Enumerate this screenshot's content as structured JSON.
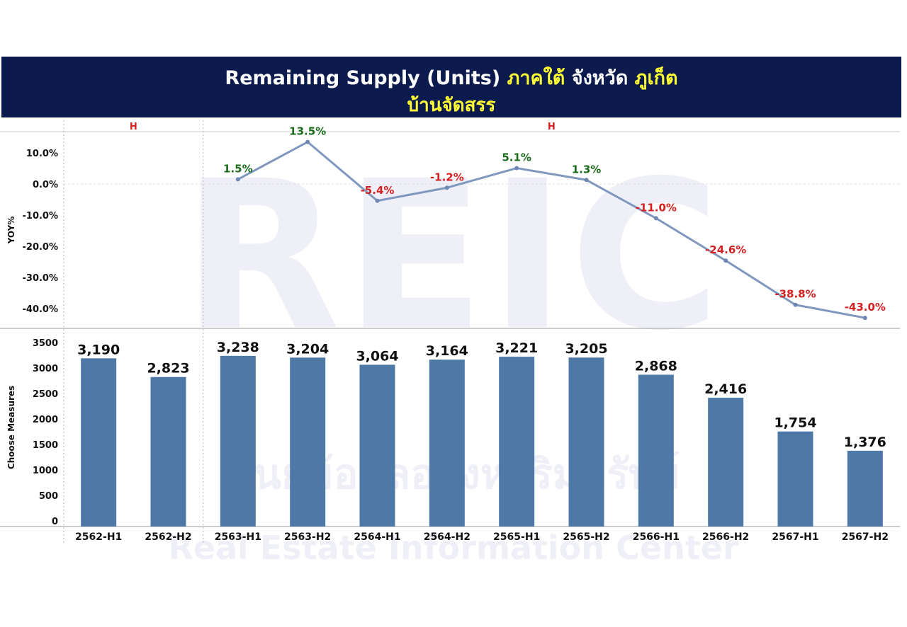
{
  "title": {
    "part1": "Remaining Supply (Units)",
    "part2": "ภาคใต้",
    "part3": "จังหวัด",
    "part4": "ภูเก็ต",
    "line2": "บ้านจัดสรร"
  },
  "chart_data": {
    "type": "bar",
    "categories": [
      "2562-H1",
      "2562-H2",
      "2563-H1",
      "2563-H2",
      "2564-H1",
      "2564-H2",
      "2565-H1",
      "2565-H2",
      "2566-H1",
      "2566-H2",
      "2567-H1",
      "2567-H2"
    ],
    "groups": [
      {
        "label": "H",
        "count": 2
      },
      {
        "label": "H",
        "count": 10
      }
    ],
    "top_panel": {
      "type": "line",
      "ylabel": "YOY%",
      "yticks": [
        "10.0%",
        "0.0%",
        "-10.0%",
        "-20.0%",
        "-30.0%",
        "-40.0%"
      ],
      "ylim": [
        -43.0,
        13.5
      ],
      "values": [
        null,
        null,
        1.5,
        13.5,
        -5.4,
        -1.2,
        5.1,
        1.3,
        -11.0,
        -24.6,
        -38.8,
        -43.0
      ],
      "labels": [
        "",
        "",
        "1.5%",
        "13.5%",
        "-5.4%",
        "-1.2%",
        "5.1%",
        "1.3%",
        "-11.0%",
        "-24.6%",
        "-38.8%",
        "-43.0%"
      ],
      "positive_color": "#1a6b1a",
      "negative_color": "#d42020",
      "line_color": "#8098be"
    },
    "bottom_panel": {
      "type": "bar",
      "ylabel": "Choose Measures",
      "yticks": [
        "3500",
        "3000",
        "2500",
        "2000",
        "1500",
        "1000",
        "500",
        "0"
      ],
      "ylim": [
        0,
        3500
      ],
      "values": [
        3190,
        2823,
        3238,
        3204,
        3064,
        3164,
        3221,
        3205,
        2868,
        2416,
        1754,
        1376
      ],
      "labels": [
        "3,190",
        "2,823",
        "3,238",
        "3,204",
        "3,064",
        "3,164",
        "3,221",
        "3,205",
        "2,868",
        "2,416",
        "1,754",
        "1,376"
      ],
      "bar_color": "#4e79a7"
    },
    "watermark": {
      "big": "REIC",
      "line1": "ศูนย์ข้อมูลอสังหาริมทรัพย์",
      "line2": "Real Estate Information Center"
    }
  }
}
